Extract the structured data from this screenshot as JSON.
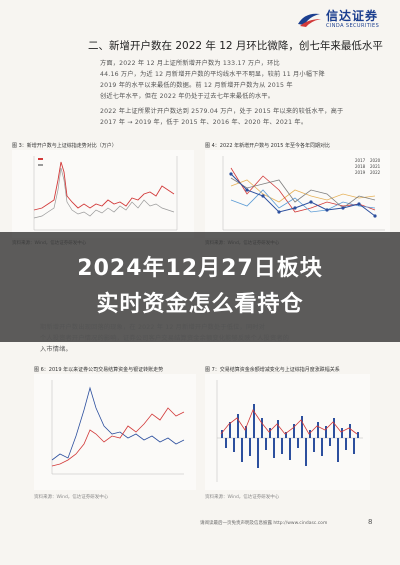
{
  "brand": {
    "name_cn": "信达证券",
    "name_en": "CINDA SECURITIES"
  },
  "heading": "二、新增开户数在 2022 年 12 月环比微降，创七年来最低水平",
  "para1": [
    "方面，2022 年 12 月上证所新增开户数为 133.17 万户，环比",
    "44.16 万户，为近 12 月新增开户数的平均线水平不明显，较前 11 月小幅下降",
    "2019 年的水平以来最低的数据。前 12 月新增开户数为从 2015 年",
    "创近七年水平，但在 2022 年仍处于过去七年来最低的水平。"
  ],
  "para2": [
    "2022 年上证所累计开户数达到 2579.04 万户，处于 2015 年以来的较低水平，高于",
    "2017 年 → 2019 年，低于 2015 年、2016 年、2020 年、2021 年。"
  ],
  "charts": {
    "c1_caption": "图 3：新增开户数与上证综指走势对比（万户）",
    "c2_caption": "图 4：2022 年新增开户数与 2015 年至今各年同期对比",
    "c3_caption": "图 6：2019 年以来证券公司交易结算资金与银证转账走势",
    "c4_caption": "图 7：交易结算资金余额增减变化与上证综指月度涨跌幅关系",
    "src1": "资料来源：Wind，信达证券研发中心",
    "src2": "资料来源：Wind，信达证券研发中心",
    "src3": "资料来源：Wind，信达证券研发中心",
    "src4": "资料来源：Wind，信达证券研发中心",
    "c2_legend": [
      "2017",
      "2018",
      "2019",
      "2020",
      "2021",
      "2022"
    ]
  },
  "overlay_title_line1": "2024年12月27日板块",
  "overlay_title_line2": "实时资金怎么看持仓",
  "para3": [
    "期新增开户数出现回落的现象，在 2022 年 12 月新增开户数处于低位，同时对",
    "个人投资者开户情况的影响，证券公司客户交易结算资金余额变化能够反映个人投资者的",
    "入市情绪。"
  ],
  "footer": "请阅读最后一页免责声明及信息披露 http://www.cindasc.com",
  "page_number": "8",
  "colors": {
    "brand": "#1c3f8f",
    "red": "#d23a3a",
    "blue": "#2c4f9e",
    "gray": "#9a9a9a"
  }
}
